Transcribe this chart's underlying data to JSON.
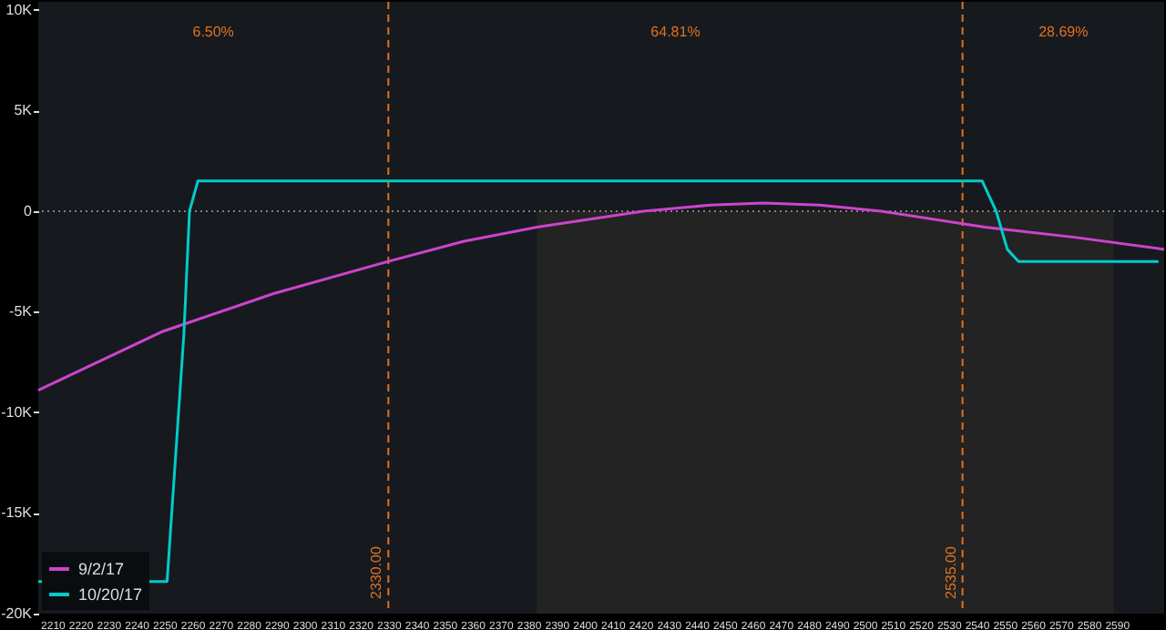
{
  "chart_data": {
    "type": "line",
    "xlim": [
      2205,
      2607
    ],
    "ylim": [
      -20000,
      10400
    ],
    "xticks": [
      2210,
      2220,
      2230,
      2240,
      2250,
      2260,
      2270,
      2280,
      2290,
      2300,
      2310,
      2320,
      2330,
      2340,
      2350,
      2360,
      2370,
      2380,
      2390,
      2400,
      2410,
      2420,
      2430,
      2440,
      2450,
      2460,
      2470,
      2480,
      2490,
      2500,
      2510,
      2520,
      2530,
      2540,
      2550,
      2560,
      2570,
      2580,
      2590
    ],
    "yticks": [
      {
        "value": -20000,
        "label": "-20K"
      },
      {
        "value": -15000,
        "label": "-15K"
      },
      {
        "value": -10000,
        "label": "-10K"
      },
      {
        "value": -5000,
        "label": "-5K"
      },
      0,
      {
        "value": 5000,
        "label": "5K"
      },
      {
        "value": 10000,
        "label": "10K"
      }
    ],
    "series": [
      {
        "name": "9/2/17",
        "color": "#cc44cc",
        "x": [
          2205,
          2249,
          2289,
          2330,
          2357,
          2383,
          2421,
          2445,
          2464,
          2484,
          2506,
          2543,
          2575,
          2607
        ],
        "values": [
          -8900,
          -6000,
          -4100,
          -2500,
          -1500,
          -800,
          0,
          300,
          400,
          300,
          0,
          -800,
          -1300,
          -1900
        ]
      },
      {
        "name": "10/20/17",
        "color": "#00cccc",
        "x": [
          2205,
          2251,
          2257,
          2259,
          2262,
          2542,
          2547,
          2551,
          2555,
          2605
        ],
        "values": [
          -18400,
          -18400,
          -6100,
          0,
          1500,
          1500,
          0,
          -1900,
          -2500,
          -2500
        ]
      }
    ],
    "bands": [
      {
        "axis": "x",
        "from": 2383,
        "to": 2589,
        "color": "#232323"
      }
    ],
    "ref_lines": [
      {
        "axis": "x",
        "value": 2330,
        "label": "2330.00",
        "color": "#e07020",
        "line_style": "dashed"
      },
      {
        "axis": "x",
        "value": 2535,
        "label": "2535.00",
        "color": "#e07020",
        "line_style": "dashed"
      },
      {
        "axis": "y",
        "value": 0,
        "color": "#808080",
        "line_style": "dotted"
      }
    ],
    "annotations": [
      "6.50%",
      "64.81%",
      "28.69%"
    ],
    "legend": "bottom left",
    "line_style": "solid"
  }
}
